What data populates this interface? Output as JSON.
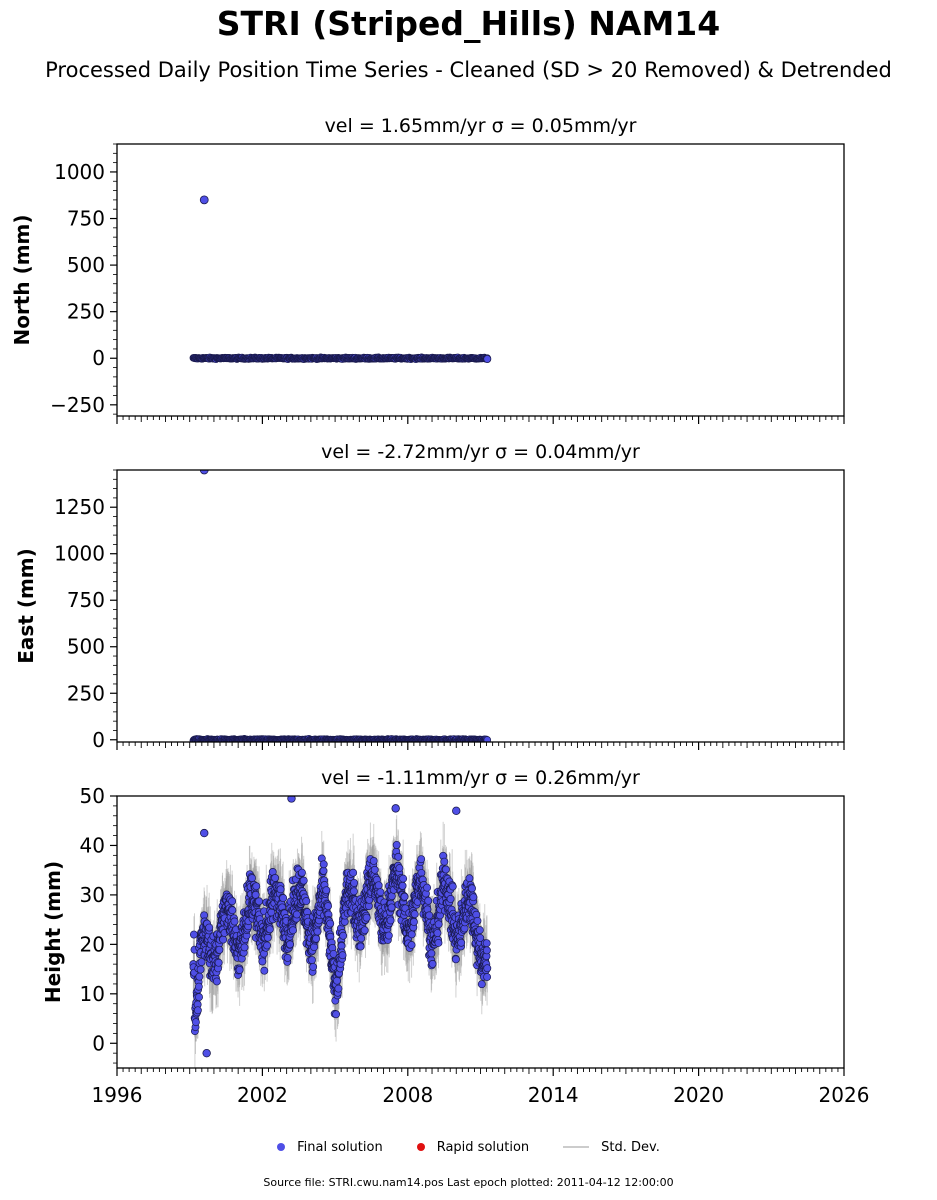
{
  "title": "STRI (Striped_Hills) NAM14",
  "subtitle": "Processed Daily Position Time Series - Cleaned (SD > 20 Removed) & Detrended",
  "legend": {
    "final": "Final solution",
    "rapid": "Rapid solution",
    "stddev": "Std. Dev."
  },
  "footer": "Source file: STRI.cwu.nam14.pos  Last epoch plotted: 2011-04-12 12:00:00",
  "colors": {
    "final": "#4f4fe6",
    "final_edge": "#1a1a4d",
    "rapid": "#e01010",
    "stddev": "#9a9a9a"
  },
  "chart_data": [
    {
      "type": "scatter",
      "title": "vel = 1.65mm/yr   σ = 0.05mm/yr",
      "ylabel": "North (mm)",
      "xlim": [
        1996,
        2026
      ],
      "ylim": [
        -310,
        1150
      ],
      "yticks": [
        -250,
        0,
        250,
        500,
        750,
        1000
      ],
      "ytick_labels": [
        "−250",
        "0",
        "250",
        "500",
        "750",
        "1000"
      ],
      "xtick_labels_visible": false,
      "data_range": [
        1999.15,
        2011.28
      ],
      "baseline": 0,
      "spread": 3,
      "outliers": [
        {
          "x": 1999.6,
          "y": 850
        }
      ],
      "series": [
        {
          "name": "Final solution",
          "x": [
            1999.6,
            2011.28
          ],
          "y": [
            850,
            -4
          ]
        }
      ]
    },
    {
      "type": "scatter",
      "title": "vel = -2.72mm/yr   σ = 0.04mm/yr",
      "ylabel": "East (mm)",
      "xlim": [
        1996,
        2026
      ],
      "ylim": [
        -12,
        1450
      ],
      "yticks": [
        0,
        250,
        500,
        750,
        1000,
        1250
      ],
      "ytick_labels": [
        "0",
        "250",
        "500",
        "750",
        "1000",
        "1250"
      ],
      "xtick_labels_visible": false,
      "data_range": [
        1999.15,
        2011.28
      ],
      "baseline": 0,
      "spread": 3,
      "outliers": [
        {
          "x": 1999.6,
          "y": 1450
        }
      ],
      "series": [
        {
          "name": "Final solution",
          "x": [
            1999.6
          ],
          "y": [
            1450
          ]
        }
      ]
    },
    {
      "type": "scatter",
      "title": "vel = -1.11mm/yr   σ = 0.26mm/yr",
      "ylabel": "Height (mm)",
      "xlim": [
        1996,
        2026
      ],
      "ylim": [
        -5,
        50
      ],
      "yticks": [
        0,
        10,
        20,
        30,
        40,
        50
      ],
      "ytick_labels": [
        "0",
        "10",
        "20",
        "30",
        "40",
        "50"
      ],
      "xticks": [
        1996,
        2002,
        2008,
        2014,
        2020,
        2026
      ],
      "xtick_labels": [
        "1996",
        "2002",
        "2008",
        "2014",
        "2020",
        "2026"
      ],
      "xtick_labels_visible": true,
      "data_range": [
        1999.15,
        2011.28
      ],
      "series": [
        {
          "name": "Final solution",
          "x": [
            1999.2,
            1999.5,
            2000.0,
            2000.5,
            2001.0,
            2001.5,
            2002.0,
            2002.5,
            2003.0,
            2003.5,
            2004.0,
            2004.5,
            2005.0,
            2005.5,
            2006.0,
            2006.5,
            2007.0,
            2007.5,
            2008.0,
            2008.5,
            2009.0,
            2009.5,
            2010.0,
            2010.5,
            2011.0,
            2011.25
          ],
          "y": [
            5,
            18,
            20,
            24,
            22,
            26,
            25,
            27,
            26,
            28,
            24,
            27,
            15,
            27,
            28,
            30,
            27,
            31,
            26,
            30,
            24,
            29,
            25,
            26,
            22,
            18
          ]
        }
      ],
      "highlights": [
        {
          "x": 1999.6,
          "y": 42.5
        },
        {
          "x": 2003.2,
          "y": 49.5
        },
        {
          "x": 2007.5,
          "y": 47.5
        },
        {
          "x": 2010.0,
          "y": 47.0
        },
        {
          "x": 1999.7,
          "y": -2
        }
      ]
    }
  ]
}
